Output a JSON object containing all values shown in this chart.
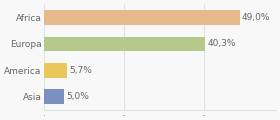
{
  "categories": [
    "Africa",
    "Europa",
    "America",
    "Asia"
  ],
  "values": [
    49.0,
    40.3,
    5.7,
    5.0
  ],
  "labels": [
    "49,0%",
    "40,3%",
    "5,7%",
    "5,0%"
  ],
  "bar_colors": [
    "#e8b98a",
    "#b5c98a",
    "#e8c85a",
    "#7b8fc0"
  ],
  "background_color": "#f8f8f8",
  "xlim": [
    0,
    58
  ],
  "bar_height": 0.55,
  "label_fontsize": 6.5,
  "ylabel_fontsize": 6.5,
  "grid_color": "#dddddd",
  "text_color": "#666666"
}
